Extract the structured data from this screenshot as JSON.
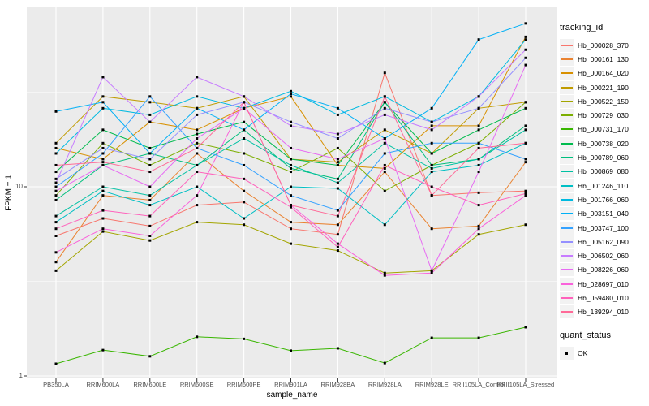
{
  "figure": {
    "background": "#FFFFFF",
    "panel_background": "#EBEBEB",
    "gridline_color": "#FFFFFF",
    "tick_color": "#333333",
    "axis_text_color": "#4D4D4D",
    "point_color": "#000000"
  },
  "chart_data": {
    "type": "line",
    "title": "",
    "xlabel": "sample_name",
    "ylabel": "FPKM + 1",
    "y_scale": "log10",
    "ylim": [
      1,
      88
    ],
    "grid": "on",
    "legend_position": "right",
    "y_major_ticks": [
      {
        "label": "10",
        "value": 10
      },
      {
        "label": "1",
        "value": 1
      }
    ],
    "y_minor_values": [
      3.1623,
      31.623
    ],
    "point_marker": {
      "shape": "square",
      "color": "#000000",
      "size": 3
    },
    "categories": [
      "PB350LA",
      "RRIM600LA",
      "RRIM600LE",
      "RRIM600SE",
      "RRIM600PE",
      "RRIM901LA",
      "RRIM928BA",
      "RRIM928LA",
      "RRIM928LE",
      "RRII105LA_Control",
      "RRII105LA_Stressed"
    ],
    "series": [
      {
        "name": "Hb_000028_370",
        "color": "#F8766D",
        "values": [
          5.5,
          6.8,
          6.2,
          8.0,
          8.3,
          6.0,
          5.6,
          40,
          9.0,
          9.3,
          9.5
        ]
      },
      {
        "name": "Hb_000161_130",
        "color": "#EA8331",
        "values": [
          4.0,
          9.0,
          8.5,
          15,
          9.5,
          6.5,
          6.3,
          12,
          6.0,
          6.2,
          13.5
        ]
      },
      {
        "name": "Hb_000164_020",
        "color": "#D89000",
        "values": [
          16,
          14,
          22,
          20,
          26,
          30,
          13,
          12.5,
          21,
          21,
          62
        ]
      },
      {
        "name": "Hb_000221_190",
        "color": "#C09B00",
        "values": [
          17,
          30,
          28,
          26,
          30,
          14,
          13.5,
          20,
          15,
          26,
          28
        ]
      },
      {
        "name": "Hb_000522_150",
        "color": "#A3A500",
        "values": [
          3.6,
          5.8,
          5.2,
          6.5,
          6.3,
          5.0,
          4.6,
          3.5,
          3.6,
          5.6,
          6.3
        ]
      },
      {
        "name": "Hb_000729_030",
        "color": "#7CAE00",
        "values": [
          9.0,
          17,
          13,
          17,
          15,
          12,
          16,
          9.5,
          13,
          17,
          28
        ]
      },
      {
        "name": "Hb_000731_170",
        "color": "#39B600",
        "values": [
          1.16,
          1.37,
          1.27,
          1.61,
          1.57,
          1.36,
          1.4,
          1.17,
          1.59,
          1.59,
          1.81
        ]
      },
      {
        "name": "Hb_000738_020",
        "color": "#00BB4E",
        "values": [
          12,
          20,
          16,
          19,
          22,
          14,
          13,
          28,
          15,
          20,
          26
        ]
      },
      {
        "name": "Hb_000789_060",
        "color": "#00BF7D",
        "values": [
          8.5,
          13,
          15,
          13,
          20,
          12.5,
          11,
          28,
          13,
          14,
          21
        ]
      },
      {
        "name": "Hb_000869_080",
        "color": "#00C1A3",
        "values": [
          7.0,
          10,
          9.0,
          13,
          18,
          13,
          10.5,
          17,
          12.5,
          14,
          20
        ]
      },
      {
        "name": "Hb_001246_110",
        "color": "#00BFC4",
        "values": [
          6.5,
          9.5,
          8.0,
          10,
          6.8,
          10,
          9.8,
          6.3,
          12,
          13,
          17
        ]
      },
      {
        "name": "Hb_001766_060",
        "color": "#00BAE0",
        "values": [
          15,
          26,
          24,
          30,
          26,
          32,
          24,
          30,
          22,
          30,
          60
        ]
      },
      {
        "name": "Hb_003151_040",
        "color": "#00B0F6",
        "values": [
          25,
          28,
          15,
          26,
          20,
          31,
          26,
          18,
          26,
          60,
          73
        ]
      },
      {
        "name": "Hb_003747_100",
        "color": "#35A2FF",
        "values": [
          10,
          15,
          30,
          16,
          13,
          9.0,
          7.5,
          15,
          17,
          17,
          14
        ]
      },
      {
        "name": "Hb_005162_090",
        "color": "#9590FF",
        "values": [
          11,
          16,
          14,
          24,
          28,
          22,
          18,
          26,
          22,
          26,
          48
        ]
      },
      {
        "name": "Hb_006502_060",
        "color": "#C77CFF",
        "values": [
          10.5,
          38,
          22,
          38,
          30,
          21,
          19,
          24,
          20,
          30,
          53
        ]
      },
      {
        "name": "Hb_008226_060",
        "color": "#E76BF3",
        "values": [
          9.5,
          13,
          10,
          18,
          26,
          16,
          14,
          18,
          3.6,
          12,
          44
        ]
      },
      {
        "name": "Hb_028697_010",
        "color": "#FA62DB",
        "values": [
          4.5,
          6.0,
          5.5,
          9.0,
          28,
          8.0,
          5.0,
          3.4,
          3.5,
          6.0,
          9.0
        ]
      },
      {
        "name": "Hb_059480_010",
        "color": "#FF62BC",
        "values": [
          6.0,
          7.5,
          7.0,
          12,
          11,
          7.8,
          4.8,
          13,
          10,
          8.0,
          9.2
        ]
      },
      {
        "name": "Hb_139294_010",
        "color": "#FF6A98",
        "values": [
          13,
          13.5,
          12,
          16,
          28,
          8.0,
          7.0,
          30,
          9.0,
          16,
          17
        ]
      }
    ]
  },
  "legend": {
    "tracking_title": "tracking_id",
    "quant_title": "quant_status",
    "quant_items": [
      {
        "label": "OK",
        "marker": "black-square"
      }
    ],
    "key_fill": "#F2F2F2"
  }
}
